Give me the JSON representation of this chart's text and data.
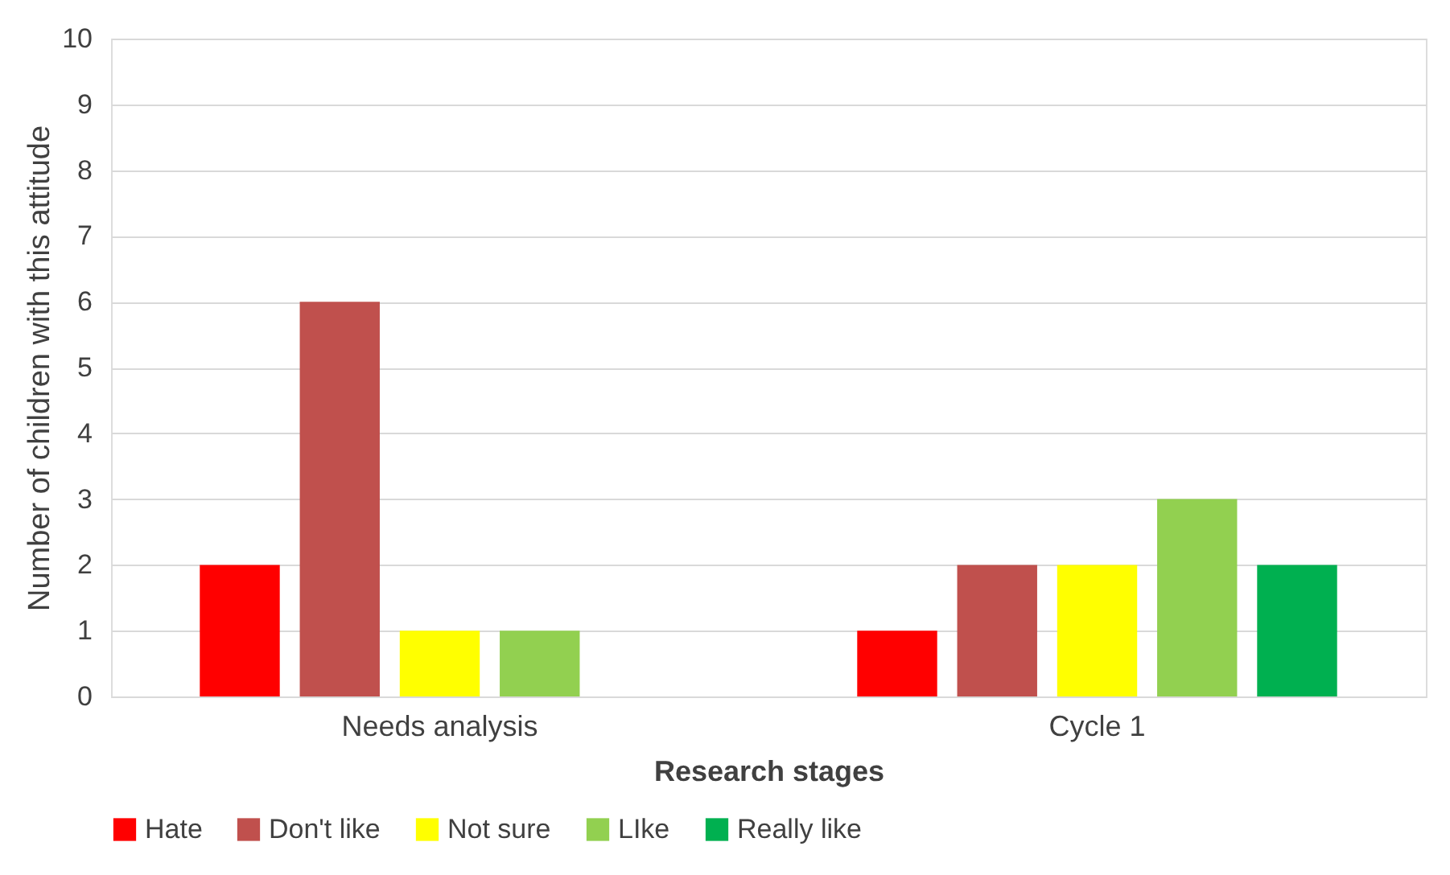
{
  "chart_data": {
    "type": "bar",
    "xlabel": "Research stages",
    "ylabel": "Number of children with this attitude",
    "categories": [
      "Needs analysis",
      "Cycle 1"
    ],
    "series": [
      {
        "name": "Hate",
        "color": "#ff0000",
        "values": [
          2,
          1
        ]
      },
      {
        "name": "Don't like",
        "color": "#c0504d",
        "values": [
          6,
          2
        ]
      },
      {
        "name": "Not sure",
        "color": "#ffff00",
        "values": [
          1,
          2
        ]
      },
      {
        "name": "LIke",
        "color": "#92d050",
        "values": [
          1,
          3
        ]
      },
      {
        "name": "Really like",
        "color": "#00b050",
        "values": [
          null,
          2
        ]
      }
    ],
    "ylim": [
      0,
      10
    ],
    "yticks": [
      0,
      1,
      2,
      3,
      4,
      5,
      6,
      7,
      8,
      9,
      10
    ],
    "grid": "y",
    "legend": "bottom"
  }
}
